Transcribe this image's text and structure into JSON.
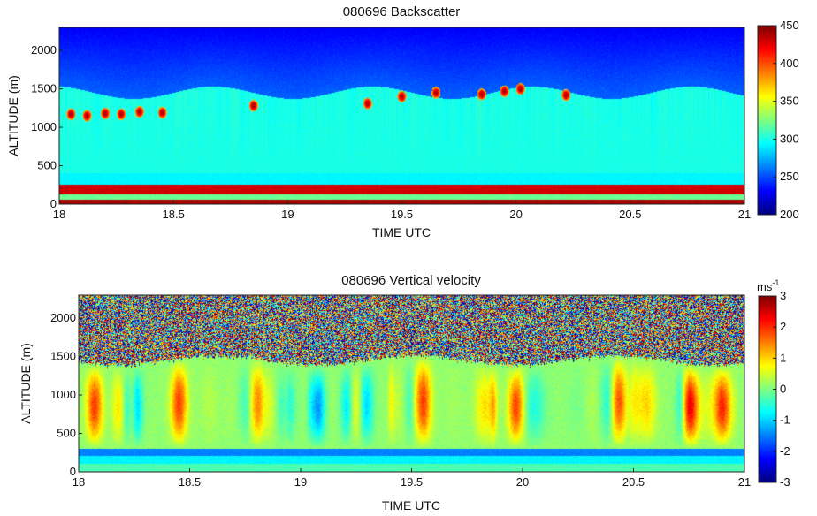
{
  "chart_data": [
    {
      "type": "heatmap",
      "title": "080696  Backscatter",
      "xlabel": "TIME UTC",
      "ylabel": "ALTITUDE (m)",
      "xlim": [
        18,
        21
      ],
      "ylim": [
        0,
        2300
      ],
      "x_ticks": [
        "18",
        "18.5",
        "19",
        "19.5",
        "20",
        "20.5",
        "21"
      ],
      "y_ticks": [
        "0",
        "500",
        "1000",
        "1500",
        "2000"
      ],
      "colorbar": {
        "min": 200,
        "max": 450,
        "ticks": [
          "200",
          "250",
          "300",
          "350",
          "400",
          "450"
        ],
        "unit": ""
      },
      "colormap": "jet",
      "features": {
        "background_value": 230,
        "upper_layer_value": 270,
        "boundary_layer_top_m": 1450,
        "boundary_layer_value": 300,
        "surface_layer": [
          [
            0,
            50,
            440
          ],
          [
            50,
            120,
            320
          ],
          [
            120,
            250,
            430
          ]
        ],
        "cloud_patches": [
          {
            "t": 18.05,
            "z": 1170
          },
          {
            "t": 18.12,
            "z": 1150
          },
          {
            "t": 18.2,
            "z": 1180
          },
          {
            "t": 18.27,
            "z": 1170
          },
          {
            "t": 18.35,
            "z": 1200
          },
          {
            "t": 18.45,
            "z": 1190
          },
          {
            "t": 18.85,
            "z": 1280
          },
          {
            "t": 19.35,
            "z": 1310
          },
          {
            "t": 19.5,
            "z": 1400
          },
          {
            "t": 19.65,
            "z": 1450
          },
          {
            "t": 19.85,
            "z": 1430
          },
          {
            "t": 19.95,
            "z": 1470
          },
          {
            "t": 20.02,
            "z": 1500
          },
          {
            "t": 20.22,
            "z": 1420
          }
        ]
      }
    },
    {
      "type": "heatmap",
      "title": "080696  Vertical velocity",
      "xlabel": "TIME UTC",
      "ylabel": "ALTITUDE (m)",
      "xlim": [
        18,
        21
      ],
      "ylim": [
        0,
        2300
      ],
      "x_ticks": [
        "18",
        "18.5",
        "19",
        "19.5",
        "20",
        "20.5",
        "21"
      ],
      "y_ticks": [
        "0",
        "500",
        "1000",
        "1500",
        "2000"
      ],
      "colorbar": {
        "min": -3,
        "max": 3,
        "ticks": [
          "-3",
          "-2",
          "-1",
          "0",
          "1",
          "2",
          "3"
        ],
        "unit_base": "ms",
        "unit_sup": "-1"
      },
      "colormap": "jet",
      "features": {
        "noise_above_m": 1450,
        "mixed_layer": [
          300,
          1450
        ],
        "surface_band_value": -1.5,
        "updraft_times": [
          18.07,
          18.45,
          18.8,
          19.55,
          19.97,
          20.43,
          20.75,
          20.9
        ]
      }
    }
  ]
}
